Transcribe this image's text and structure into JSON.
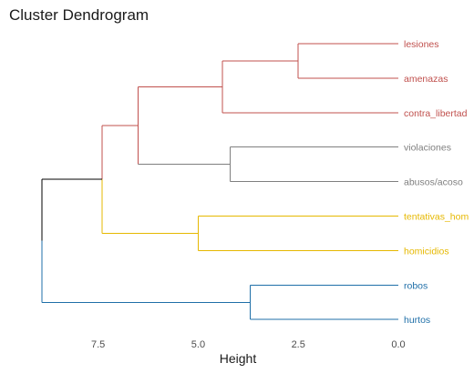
{
  "chart_data": {
    "type": "dendrogram",
    "title": "Cluster Dendrogram",
    "xlabel": "Height",
    "ylabel": "",
    "xlim": [
      9.2,
      0.0
    ],
    "x_reversed": true,
    "orientation": "horizontal",
    "grid": false,
    "xticks": [
      7.5,
      5.0,
      2.5,
      0.0
    ],
    "xtick_labels": [
      "7.5",
      "5.0",
      "2.5",
      "0.0"
    ],
    "leaves": [
      {
        "id": "lesiones",
        "label": "lesiones",
        "cluster": 1
      },
      {
        "id": "amenazas",
        "label": "amenazas",
        "cluster": 1
      },
      {
        "id": "contra_libertad",
        "label": "contra_libertad",
        "cluster": 1
      },
      {
        "id": "violaciones",
        "label": "violaciones",
        "cluster": 2
      },
      {
        "id": "abusos_acoso",
        "label": "abusos/acoso",
        "cluster": 2
      },
      {
        "id": "tentativas_hom",
        "label": "tentativas_hom",
        "cluster": 3
      },
      {
        "id": "homicidios",
        "label": "homicidios",
        "cluster": 3
      },
      {
        "id": "robos",
        "label": "robos",
        "cluster": 4
      },
      {
        "id": "hurtos",
        "label": "hurtos",
        "cluster": 4
      }
    ],
    "merges": [
      {
        "id": "m1",
        "height": 2.5,
        "children": [
          "lesiones",
          "amenazas"
        ],
        "cluster": 1
      },
      {
        "id": "m2",
        "height": 4.4,
        "children": [
          "m1",
          "contra_libertad"
        ],
        "cluster": 1
      },
      {
        "id": "m3",
        "height": 4.2,
        "children": [
          "violaciones",
          "abusos_acoso"
        ],
        "cluster": 2
      },
      {
        "id": "m4",
        "height": 6.5,
        "children": [
          "m2",
          "m3"
        ],
        "cluster": 1
      },
      {
        "id": "m5",
        "height": 5.0,
        "children": [
          "tentativas_hom",
          "homicidios"
        ],
        "cluster": 3
      },
      {
        "id": "m6",
        "height": 7.4,
        "children": [
          "m4",
          "m5"
        ],
        "cluster": 0
      },
      {
        "id": "m7",
        "height": 3.7,
        "children": [
          "robos",
          "hurtos"
        ],
        "cluster": 4
      },
      {
        "id": "m8",
        "height": 8.9,
        "children": [
          "m6",
          "m7"
        ],
        "cluster": 0
      }
    ],
    "cluster_colors": {
      "0": "#000000",
      "1": "#c0504d",
      "2": "#7f7f7f",
      "3": "#e6b800",
      "4": "#1f6fa8"
    }
  }
}
